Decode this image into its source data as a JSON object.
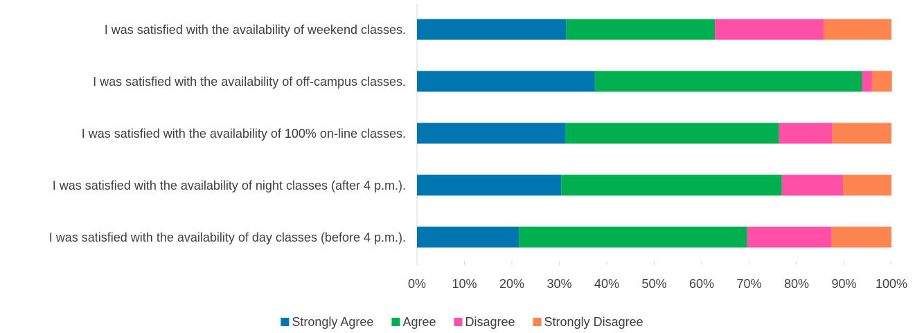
{
  "chart_data": {
    "type": "bar",
    "orientation": "horizontal",
    "stacked": true,
    "categories": [
      "I was satisfied with the availability of weekend classes.",
      "I was satisfied with the availability of off-campus classes.",
      "I was satisfied with the availability of 100% on-line classes.",
      "I was satisfied with the availability of night classes (after 4 p.m.).",
      "I was satisfied with the availability of day classes (before 4 p.m.)."
    ],
    "series": [
      {
        "name": "Strongly Agree",
        "color": "#0076b0",
        "values": [
          31.4,
          37.5,
          31.3,
          30.4,
          21.5
        ]
      },
      {
        "name": "Agree",
        "color": "#00b050",
        "values": [
          31.4,
          56.3,
          45.0,
          46.5,
          48.1
        ]
      },
      {
        "name": "Disagree",
        "color": "#ff4fa7",
        "values": [
          22.9,
          2.1,
          11.2,
          12.9,
          17.8
        ]
      },
      {
        "name": "Strongly Disagree",
        "color": "#ff8550",
        "values": [
          14.3,
          4.2,
          12.5,
          10.2,
          12.6
        ]
      }
    ],
    "xlim": [
      0,
      100
    ],
    "xticks": [
      {
        "value": 0,
        "label": "0%"
      },
      {
        "value": 10,
        "label": "10%"
      },
      {
        "value": 20,
        "label": "20%"
      },
      {
        "value": 30,
        "label": "30%"
      },
      {
        "value": 40,
        "label": "40%"
      },
      {
        "value": 50,
        "label": "50%"
      },
      {
        "value": 60,
        "label": "60%"
      },
      {
        "value": 70,
        "label": "70%"
      },
      {
        "value": 80,
        "label": "80%"
      },
      {
        "value": 90,
        "label": "90%"
      },
      {
        "value": 100,
        "label": "100%"
      }
    ],
    "legend": "bottom"
  }
}
